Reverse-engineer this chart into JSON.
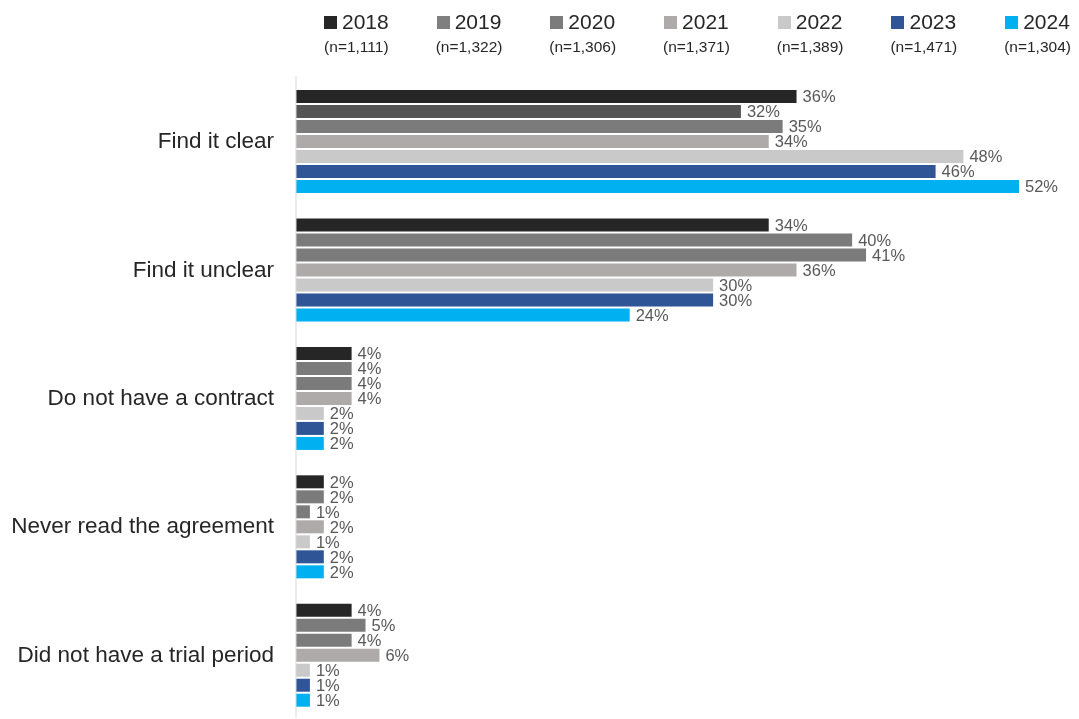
{
  "chart_data": {
    "type": "bar",
    "orientation": "horizontal",
    "legend": "top",
    "categories": [
      "Find it clear",
      "Find it unclear",
      "Do not have a contract",
      "Never read the agreement",
      "Did not have a trial period"
    ],
    "series": [
      {
        "name": "2018 (n=1,111)",
        "color": "#262626",
        "values": [
          36,
          34,
          4,
          2,
          4
        ],
        "value_labels": [
          "36%",
          "34%",
          "4%",
          "2%",
          "4%"
        ]
      },
      {
        "name": "2019 (n=1,322)",
        "color": "#7f7f7f",
        "colors": [
          "#555555",
          "#7b7b7b",
          "#7b7b7b",
          "#7b7b7b",
          "#7b7b7b"
        ],
        "values": [
          32,
          40,
          4,
          2,
          5
        ],
        "value_labels": [
          "32%",
          "40%",
          "4%",
          "2%",
          "5%"
        ]
      },
      {
        "name": "2020 (n=1,306)",
        "color": "#7b7b7b",
        "values": [
          35,
          41,
          4,
          1,
          4
        ],
        "value_labels": [
          "35%",
          "41%",
          "4%",
          "1%",
          "4%"
        ]
      },
      {
        "name": "2021 (n=1,371)",
        "color": "#aeaaaa",
        "values": [
          34,
          36,
          4,
          2,
          6
        ],
        "value_labels": [
          "34%",
          "36%",
          "4%",
          "2%",
          "6%"
        ]
      },
      {
        "name": "2022 (n=1,389)",
        "color": "#c9c9c9",
        "values": [
          48,
          30,
          2,
          1,
          1
        ],
        "value_labels": [
          "48%",
          "30%",
          "2%",
          "1%",
          "1%"
        ]
      },
      {
        "name": "2023 (n=1,471)",
        "color": "#2f5597",
        "values": [
          46,
          30,
          2,
          2,
          1
        ],
        "value_labels": [
          "46%",
          "30%",
          "2%",
          "2%",
          "1%"
        ]
      },
      {
        "name": "2024 (n=1,304)",
        "color": "#00b0f0",
        "values": [
          52,
          24,
          2,
          2,
          1
        ],
        "value_labels": [
          "52%",
          "24%",
          "2%",
          "2%",
          "1%"
        ]
      }
    ]
  }
}
